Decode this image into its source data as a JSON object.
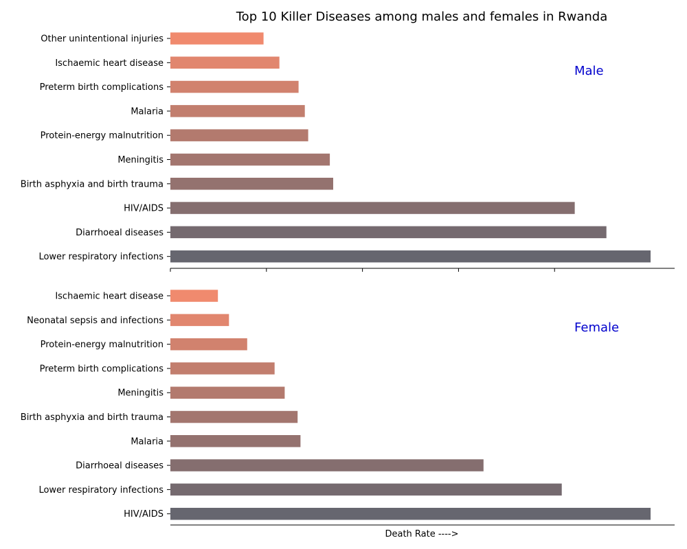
{
  "chart_data": {
    "type": "bar",
    "orientation": "horizontal",
    "title": "Top 10 Killer Diseases among males and females in Rwanda",
    "xlabel": "Death Rate ---->",
    "x_tick_labels_shown": false,
    "grid": false,
    "label_color": "#0000cd",
    "color_gradient": [
      "#f08a6e",
      "#66666f"
    ],
    "panels": [
      {
        "label": "Male",
        "xlim": [
          0,
          1.05
        ],
        "categories": [
          "Other unintentional injuries",
          "Ischaemic heart disease",
          "Preterm birth complications",
          "Malaria",
          "Protein-energy malnutrition",
          "Meningitis",
          "Birth asphyxia and birth trauma",
          "HIV/AIDS",
          "Diarrhoeal diseases",
          "Lower respiratory infections"
        ],
        "values": [
          0.194,
          0.227,
          0.267,
          0.28,
          0.287,
          0.332,
          0.339,
          0.842,
          0.908,
          1.0
        ]
      },
      {
        "label": "Female",
        "xlim": [
          0,
          1.05
        ],
        "categories": [
          "Ischaemic heart disease",
          "Neonatal sepsis and infections",
          "Protein-energy malnutrition",
          "Preterm birth complications",
          "Meningitis",
          "Birth asphyxia and birth trauma",
          "Malaria",
          "Diarrhoeal diseases",
          "Lower respiratory infections",
          "HIV/AIDS"
        ],
        "values": [
          0.099,
          0.122,
          0.16,
          0.217,
          0.238,
          0.265,
          0.271,
          0.652,
          0.815,
          1.0
        ]
      }
    ]
  }
}
